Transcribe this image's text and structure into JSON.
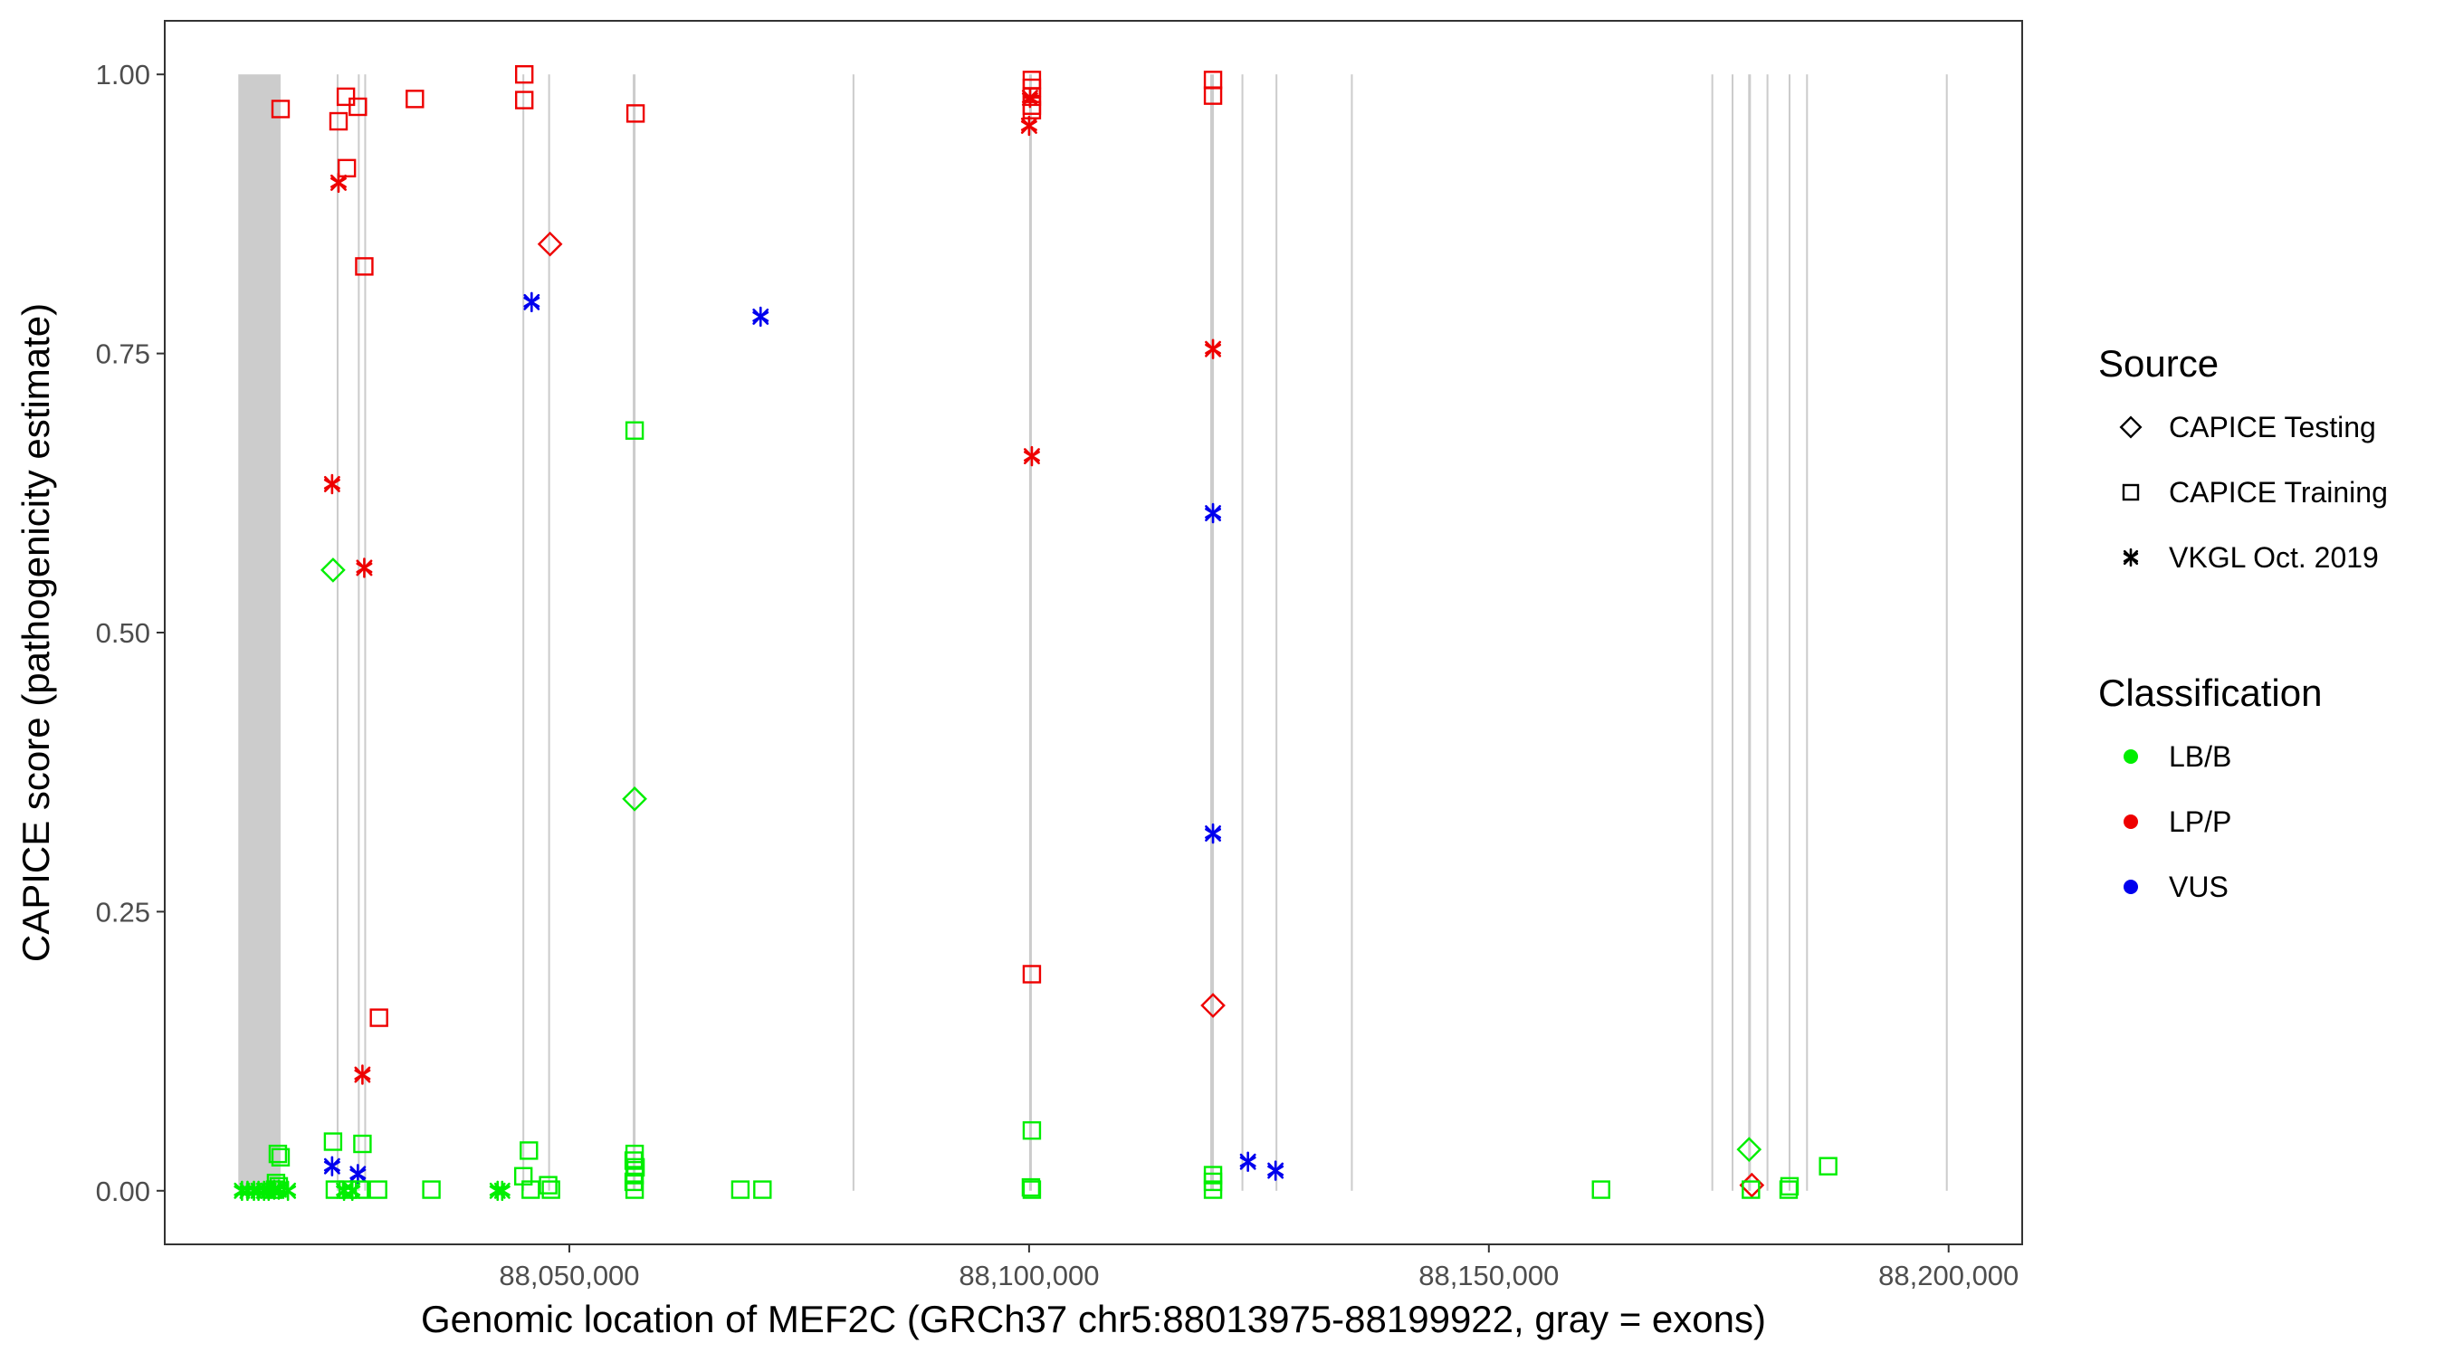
{
  "chart_data": {
    "type": "scatter",
    "xlabel": "Genomic location of MEF2C (GRCh37 chr5:88013975-88199922, gray = exons)",
    "ylabel": "CAPICE score (pathogenicity estimate)",
    "xlim": [
      88006000.0,
      88208000.0
    ],
    "ylim": [
      -0.048,
      1.048
    ],
    "x_ticks": [
      88050000,
      88100000,
      88150000,
      88200000
    ],
    "x_tick_labels": [
      "88,050,000",
      "88,100,000",
      "88,150,000",
      "88,200,000"
    ],
    "y_ticks": [
      0,
      0.25,
      0.5,
      0.75,
      1
    ],
    "y_tick_labels": [
      "0.00",
      "0.25",
      "0.50",
      "0.75",
      "1.00"
    ],
    "grid": false,
    "legend_position": "right",
    "colors": {
      "LB/B": "#00ee00",
      "LP/P": "#ee0000",
      "VUS": "#0000ee",
      "exon": "#cccccc"
    },
    "legend": {
      "source_title": "Source",
      "source_items": [
        {
          "label": "CAPICE Testing",
          "shape": "diamond"
        },
        {
          "label": "CAPICE Training",
          "shape": "square"
        },
        {
          "label": "VKGL Oct. 2019",
          "shape": "asterisk"
        }
      ],
      "classification_title": "Classification",
      "classification_items": [
        {
          "label": "LB/B",
          "color": "#00ee00"
        },
        {
          "label": "LP/P",
          "color": "#ee0000"
        },
        {
          "label": "VUS",
          "color": "#0000ee"
        }
      ]
    },
    "exon_regions": [
      [
        88014000,
        88018600
      ],
      [
        88024700,
        88024900
      ],
      [
        88027000,
        88027200
      ],
      [
        88027700,
        88027900
      ],
      [
        88044900,
        88045100
      ],
      [
        88047700,
        88047900
      ],
      [
        88056900,
        88057200
      ],
      [
        88080800,
        88081000
      ],
      [
        88100000,
        88100300
      ],
      [
        88119700,
        88120100
      ],
      [
        88123100,
        88123300
      ],
      [
        88126800,
        88127000
      ],
      [
        88135000,
        88135200
      ],
      [
        88174200,
        88174400
      ],
      [
        88176400,
        88176600
      ],
      [
        88178200,
        88178500
      ],
      [
        88180200,
        88180400
      ],
      [
        88182600,
        88182800
      ],
      [
        88184500,
        88184700
      ],
      [
        88199700,
        88199900
      ]
    ],
    "series": [
      {
        "source": "CAPICE Training",
        "classification": "LP/P",
        "points": [
          [
            88018600,
            0.969
          ],
          [
            88024900,
            0.958
          ],
          [
            88025700,
            0.98
          ],
          [
            88027000,
            0.971
          ],
          [
            88025800,
            0.916
          ],
          [
            88027700,
            0.828
          ],
          [
            88033200,
            0.978
          ],
          [
            88045100,
            1.0
          ],
          [
            88045100,
            0.977
          ],
          [
            88057200,
            0.965
          ],
          [
            88100300,
            0.995
          ],
          [
            88100300,
            0.988
          ],
          [
            88100300,
            0.98
          ],
          [
            88100300,
            0.972
          ],
          [
            88100300,
            0.968
          ],
          [
            88120000,
            0.995
          ],
          [
            88120000,
            0.981
          ],
          [
            88029300,
            0.155
          ],
          [
            88100300,
            0.194
          ]
        ]
      },
      {
        "source": "VKGL Oct. 2019",
        "classification": "LP/P",
        "points": [
          [
            88024900,
            0.903
          ],
          [
            88024200,
            0.633
          ],
          [
            88027700,
            0.558
          ],
          [
            88027500,
            0.104
          ],
          [
            88100000,
            0.954
          ],
          [
            88100100,
            0.979
          ],
          [
            88100300,
            0.658
          ],
          [
            88120000,
            0.754
          ]
        ]
      },
      {
        "source": "CAPICE Testing",
        "classification": "LP/P",
        "points": [
          [
            88047900,
            0.848
          ],
          [
            88120000,
            0.166
          ],
          [
            88178600,
            0.005
          ]
        ]
      },
      {
        "source": "VKGL Oct. 2019",
        "classification": "VUS",
        "points": [
          [
            88045900,
            0.796
          ],
          [
            88070800,
            0.783
          ],
          [
            88120000,
            0.607
          ],
          [
            88120000,
            0.32
          ],
          [
            88024200,
            0.022
          ],
          [
            88027000,
            0.015
          ],
          [
            88123800,
            0.026
          ],
          [
            88126800,
            0.018
          ]
        ]
      },
      {
        "source": "CAPICE Testing",
        "classification": "LB/B",
        "points": [
          [
            88024300,
            0.556
          ],
          [
            88057100,
            0.351
          ],
          [
            88178300,
            0.037
          ]
        ]
      },
      {
        "source": "CAPICE Training",
        "classification": "LB/B",
        "points": [
          [
            88057100,
            0.681
          ],
          [
            88100300,
            0.054
          ],
          [
            88024300,
            0.044
          ],
          [
            88027500,
            0.042
          ],
          [
            88018300,
            0.033
          ],
          [
            88018600,
            0.03
          ],
          [
            88045600,
            0.036
          ],
          [
            88057100,
            0.033
          ],
          [
            88057000,
            0.027
          ],
          [
            88057200,
            0.021
          ],
          [
            88057100,
            0.014
          ],
          [
            88057000,
            0.008
          ],
          [
            88045000,
            0.013
          ],
          [
            88120000,
            0.014
          ],
          [
            88120000,
            0.008
          ],
          [
            88186900,
            0.022
          ],
          [
            88018100,
            0.007
          ],
          [
            88018400,
            0.004
          ],
          [
            88018000,
            0.001
          ],
          [
            88024500,
            0.001
          ],
          [
            88025900,
            0.001
          ],
          [
            88027200,
            0.001
          ],
          [
            88029200,
            0.001
          ],
          [
            88035000,
            0.001
          ],
          [
            88045800,
            0.001
          ],
          [
            88047700,
            0.005
          ],
          [
            88048000,
            0.001
          ],
          [
            88057100,
            0.001
          ],
          [
            88068600,
            0.001
          ],
          [
            88071000,
            0.001
          ],
          [
            88100200,
            0.003
          ],
          [
            88100300,
            0.001
          ],
          [
            88120000,
            0.001
          ],
          [
            88162200,
            0.001
          ],
          [
            88178500,
            0.001
          ],
          [
            88182600,
            0.001
          ],
          [
            88182700,
            0.004
          ]
        ]
      },
      {
        "source": "VKGL Oct. 2019",
        "classification": "LB/B",
        "points": [
          [
            88014400,
            0.0
          ],
          [
            88015000,
            0.0
          ],
          [
            88015700,
            0.0
          ],
          [
            88016200,
            0.0
          ],
          [
            88016800,
            0.0
          ],
          [
            88017300,
            0.0
          ],
          [
            88017900,
            0.001
          ],
          [
            88018400,
            0.001
          ],
          [
            88019400,
            0.0
          ],
          [
            88025500,
            0.0
          ],
          [
            88026400,
            0.0
          ],
          [
            88042200,
            0.0
          ],
          [
            88042700,
            0.0
          ]
        ]
      }
    ]
  }
}
